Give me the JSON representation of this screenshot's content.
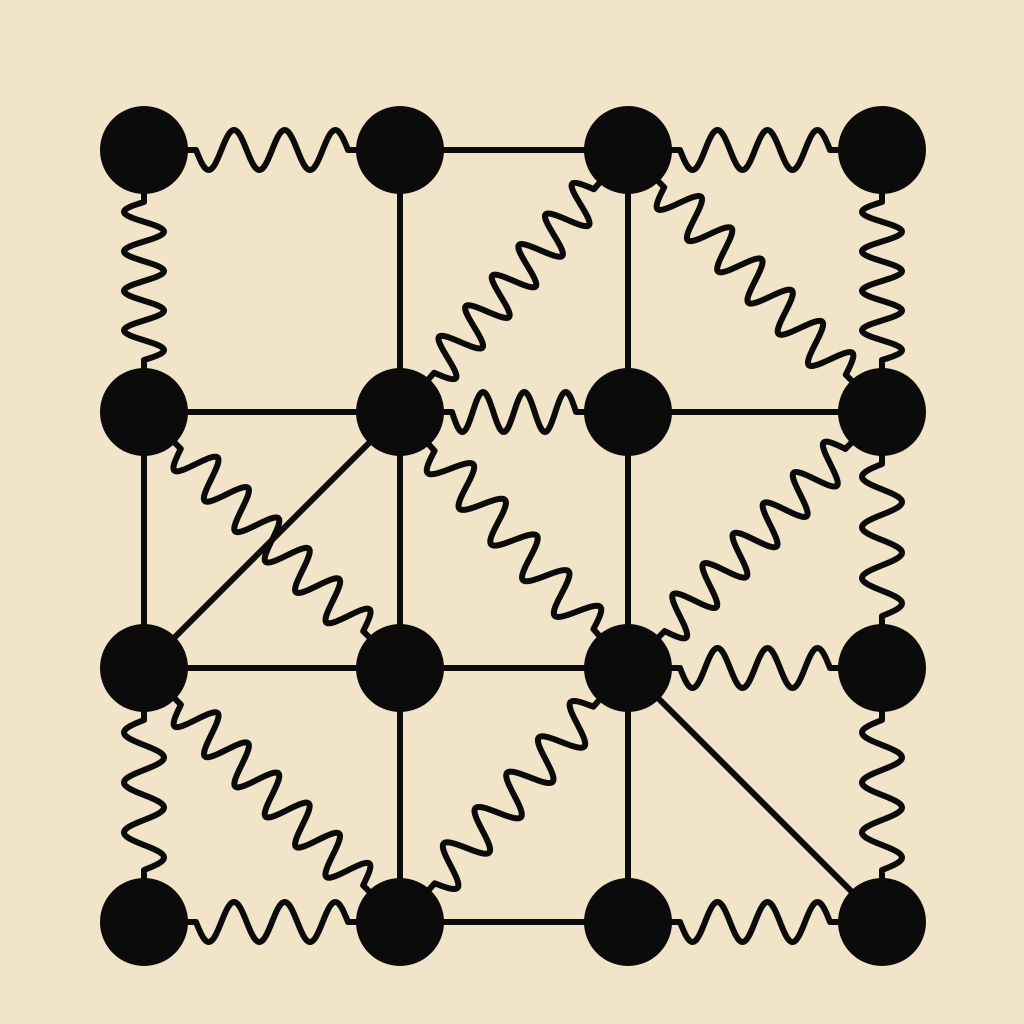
{
  "diagram": {
    "background_color": "#f2e4c8",
    "ink_color": "#0b0b0b",
    "grid": {
      "rows": 4,
      "cols": 4
    },
    "nodes": [
      {
        "id": "n00",
        "row": 0,
        "col": 0
      },
      {
        "id": "n01",
        "row": 0,
        "col": 1
      },
      {
        "id": "n02",
        "row": 0,
        "col": 2
      },
      {
        "id": "n03",
        "row": 0,
        "col": 3
      },
      {
        "id": "n10",
        "row": 1,
        "col": 0
      },
      {
        "id": "n11",
        "row": 1,
        "col": 1
      },
      {
        "id": "n12",
        "row": 1,
        "col": 2
      },
      {
        "id": "n13",
        "row": 1,
        "col": 3
      },
      {
        "id": "n20",
        "row": 2,
        "col": 0
      },
      {
        "id": "n21",
        "row": 2,
        "col": 1
      },
      {
        "id": "n22",
        "row": 2,
        "col": 2
      },
      {
        "id": "n23",
        "row": 2,
        "col": 3
      },
      {
        "id": "n30",
        "row": 3,
        "col": 0
      },
      {
        "id": "n31",
        "row": 3,
        "col": 1
      },
      {
        "id": "n32",
        "row": 3,
        "col": 2
      },
      {
        "id": "n33",
        "row": 3,
        "col": 3
      }
    ],
    "edges": [
      {
        "from": "n00",
        "to": "n01",
        "kind": "spring"
      },
      {
        "from": "n01",
        "to": "n02",
        "kind": "rod"
      },
      {
        "from": "n02",
        "to": "n03",
        "kind": "spring"
      },
      {
        "from": "n00",
        "to": "n10",
        "kind": "spring"
      },
      {
        "from": "n01",
        "to": "n11",
        "kind": "rod"
      },
      {
        "from": "n02",
        "to": "n12",
        "kind": "rod"
      },
      {
        "from": "n03",
        "to": "n13",
        "kind": "spring"
      },
      {
        "from": "n02",
        "to": "n11",
        "kind": "spring"
      },
      {
        "from": "n02",
        "to": "n13",
        "kind": "spring"
      },
      {
        "from": "n10",
        "to": "n11",
        "kind": "rod"
      },
      {
        "from": "n11",
        "to": "n12",
        "kind": "spring"
      },
      {
        "from": "n12",
        "to": "n13",
        "kind": "rod"
      },
      {
        "from": "n10",
        "to": "n20",
        "kind": "rod"
      },
      {
        "from": "n11",
        "to": "n21",
        "kind": "rod"
      },
      {
        "from": "n12",
        "to": "n22",
        "kind": "rod"
      },
      {
        "from": "n13",
        "to": "n23",
        "kind": "spring"
      },
      {
        "from": "n10",
        "to": "n21",
        "kind": "spring"
      },
      {
        "from": "n11",
        "to": "n20",
        "kind": "rod"
      },
      {
        "from": "n11",
        "to": "n22",
        "kind": "spring"
      },
      {
        "from": "n13",
        "to": "n22",
        "kind": "spring"
      },
      {
        "from": "n20",
        "to": "n21",
        "kind": "rod"
      },
      {
        "from": "n21",
        "to": "n22",
        "kind": "rod"
      },
      {
        "from": "n22",
        "to": "n23",
        "kind": "spring"
      },
      {
        "from": "n20",
        "to": "n30",
        "kind": "spring"
      },
      {
        "from": "n21",
        "to": "n31",
        "kind": "rod"
      },
      {
        "from": "n22",
        "to": "n32",
        "kind": "rod"
      },
      {
        "from": "n23",
        "to": "n33",
        "kind": "spring"
      },
      {
        "from": "n20",
        "to": "n31",
        "kind": "spring"
      },
      {
        "from": "n22",
        "to": "n31",
        "kind": "spring"
      },
      {
        "from": "n22",
        "to": "n33",
        "kind": "rod"
      },
      {
        "from": "n30",
        "to": "n31",
        "kind": "spring"
      },
      {
        "from": "n31",
        "to": "n32",
        "kind": "rod"
      },
      {
        "from": "n32",
        "to": "n33",
        "kind": "spring"
      }
    ]
  }
}
